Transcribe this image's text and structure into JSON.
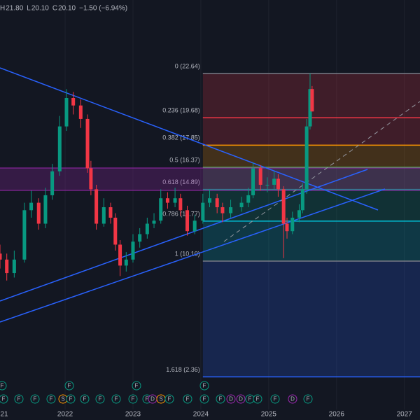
{
  "header": {
    "labels": [
      "H",
      "L",
      "C"
    ],
    "values": [
      "21.80",
      "20.10",
      "20.10"
    ],
    "change": "−1.50 (−6.94%)"
  },
  "chart_data": {
    "type": "candlestick",
    "x": [
      2021.04,
      2021.14,
      2021.25,
      2021.4,
      2021.5,
      2021.61,
      2021.71,
      2021.81,
      2021.92,
      2022.02,
      2022.12,
      2022.23,
      2022.33,
      2022.38,
      2022.46,
      2022.57,
      2022.67,
      2022.74,
      2022.81,
      2022.9,
      2023.0,
      2023.1,
      2023.21,
      2023.31,
      2023.41,
      2023.51,
      2023.62,
      2023.7,
      2023.8,
      2023.91,
      2024.03,
      2024.13,
      2024.24,
      2024.32,
      2024.44,
      2024.6,
      2024.7,
      2024.77,
      2024.88,
      2024.98,
      2025.08,
      2025.14,
      2025.22,
      2025.27,
      2025.35,
      2025.45,
      2025.5,
      2025.56,
      2025.61,
      2025.64
    ],
    "open": [
      10.6,
      10.2,
      9.3,
      10.2,
      13.5,
      14,
      12.6,
      14.5,
      16.1,
      19.1,
      21,
      20.5,
      19.6,
      16.3,
      14.9,
      12.6,
      13.7,
      13,
      11.2,
      9.8,
      10.2,
      11.4,
      11.9,
      12.6,
      12.8,
      14.3,
      14,
      14.3,
      13.5,
      12.1,
      12.8,
      14,
      14.3,
      13.7,
      13.3,
      13.7,
      14,
      14.5,
      16.3,
      15.2,
      15.2,
      15.6,
      14.9,
      12.6,
      12.1,
      13,
      13.5,
      14.9,
      19.1,
      21.6
    ],
    "high": [
      11.2,
      10.6,
      10.8,
      14.0,
      14.8,
      14.3,
      15.0,
      16.6,
      19.8,
      21.6,
      21.4,
      20.9,
      19.9,
      16.8,
      15.2,
      14.3,
      14.0,
      13.3,
      11.5,
      10.7,
      11.9,
      12.3,
      13.0,
      13.3,
      14.9,
      14.7,
      15.0,
      14.6,
      13.8,
      13.2,
      14.6,
      14.9,
      14.6,
      14.0,
      14.2,
      14.4,
      15.0,
      16.7,
      16.5,
      15.7,
      16.1,
      15.9,
      15.1,
      13.0,
      13.4,
      13.9,
      15.3,
      19.6,
      22.64,
      21.8
    ],
    "low": [
      9.6,
      8.8,
      9.0,
      10.0,
      13.0,
      12.2,
      12.3,
      14.2,
      15.8,
      18.8,
      19.9,
      19.0,
      16.0,
      14.5,
      12.2,
      12.4,
      12.6,
      10.8,
      9.1,
      9.4,
      10.0,
      11.0,
      11.6,
      12.3,
      12.6,
      13.6,
      13.7,
      13.1,
      11.8,
      11.9,
      12.6,
      13.7,
      13.3,
      12.7,
      13.0,
      13.4,
      13.7,
      14.3,
      14.8,
      14.7,
      14.9,
      14.4,
      10.3,
      11.6,
      11.9,
      12.7,
      13.3,
      14.6,
      18.9,
      20.1
    ],
    "close": [
      10.2,
      9.3,
      10.2,
      13.5,
      14,
      12.6,
      14.5,
      16.1,
      19.1,
      21,
      20.5,
      19.6,
      16.3,
      14.9,
      12.6,
      13.7,
      13,
      11.2,
      9.8,
      10.2,
      11.4,
      11.9,
      12.6,
      12.8,
      14.3,
      14,
      14.3,
      13.5,
      12.1,
      12.8,
      14,
      14.3,
      13.7,
      13.3,
      13.7,
      14,
      14.5,
      16.3,
      15.2,
      15.2,
      15.6,
      14.9,
      12.6,
      12.1,
      13,
      13.5,
      14.9,
      19.1,
      21.6,
      20.1
    ],
    "up_color": "#089981",
    "down_color": "#f23645",
    "xlim": [
      2021.04,
      2027.23
    ],
    "xticks": [
      {
        "value": 2021,
        "label": "21"
      },
      2022,
      2023,
      2024,
      2025,
      2026,
      2027
    ],
    "ylim": [
      0.18,
      27.55
    ],
    "fib_start": 2024.03,
    "fib_levels": [
      {
        "label": "0 (22.64)",
        "value": 22.64,
        "color": "#787b86"
      },
      {
        "label": "0.236 (19.68)",
        "value": 19.68,
        "color": "#f23645"
      },
      {
        "label": "0.382 (17.85)",
        "value": 17.85,
        "color": "#ff9800"
      },
      {
        "label": "0.5 (16.37)",
        "value": 16.37,
        "color": "#4caf50"
      },
      {
        "label": "0.618 (14.89)",
        "value": 14.89,
        "color": "#089981"
      },
      {
        "label": "0.786 (12.77)",
        "value": 12.77,
        "color": "#00bcd4"
      },
      {
        "label": "1 (10.10)",
        "value": 10.1,
        "color": "#787b86"
      },
      {
        "label": "1.618 (2.36)",
        "value": 2.36,
        "color": "#2962ff"
      }
    ],
    "events": [
      "F",
      "F",
      "F",
      "F",
      "S",
      "F",
      "F",
      "F",
      "F",
      "F",
      "F",
      "D",
      "S",
      "F",
      "F",
      "F",
      "F",
      "D",
      "D",
      "F",
      "F",
      "F",
      "D",
      "F"
    ],
    "events_upper": [
      "F",
      "F",
      "F",
      "F"
    ]
  }
}
